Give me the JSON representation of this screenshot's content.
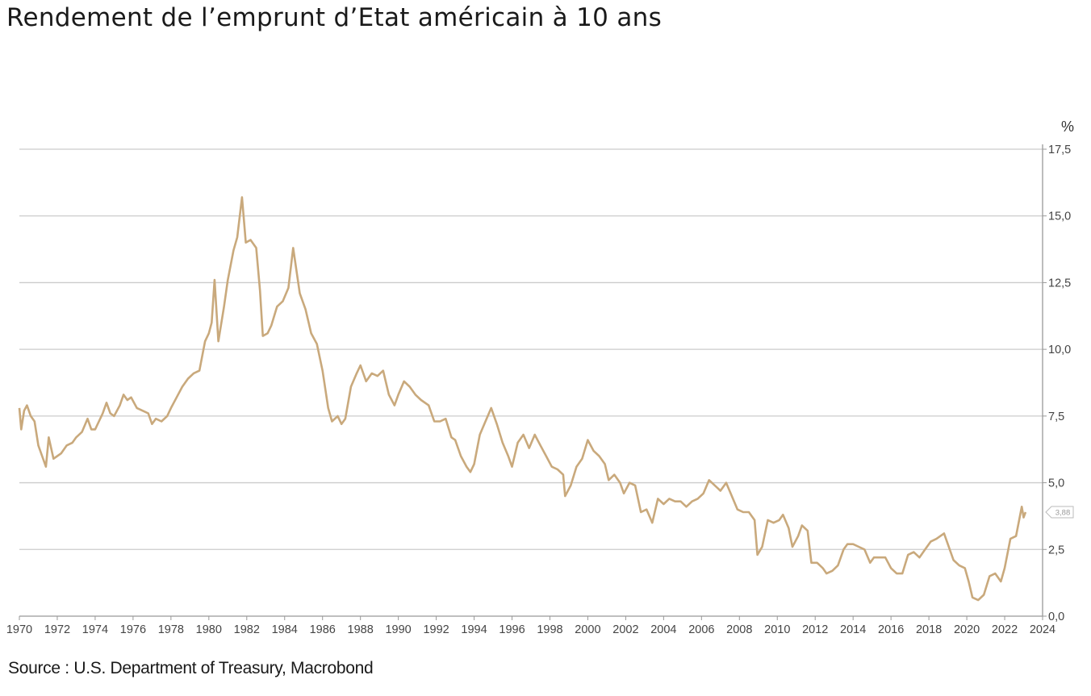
{
  "title": "Rendement de l’emprunt d’Etat américain à 10 ans",
  "source": "Source : U.S. Department of Treasury, Macrobond",
  "colors": {
    "line": "#c9a97c",
    "grid": "#cccccc",
    "axis": "#999999",
    "text": "#444444"
  },
  "chart_data": {
    "type": "line",
    "title": "Rendement de l’emprunt d’Etat américain à 10 ans",
    "xlabel": "",
    "ylabel": "%",
    "xlim": [
      1970,
      2024
    ],
    "ylim": [
      0,
      17.5
    ],
    "grid": true,
    "y_axis_side": "right",
    "x_ticks": [
      1970,
      1972,
      1974,
      1976,
      1978,
      1980,
      1982,
      1984,
      1986,
      1988,
      1990,
      1992,
      1994,
      1996,
      1998,
      2000,
      2002,
      2004,
      2006,
      2008,
      2010,
      2012,
      2014,
      2016,
      2018,
      2020,
      2022,
      2024
    ],
    "y_ticks": [
      0,
      2.5,
      5,
      7.5,
      10,
      12.5,
      15,
      17.5
    ],
    "y_tick_labels": [
      "0,0",
      "2,5",
      "5,0",
      "7,5",
      "10,0",
      "12,5",
      "15,0",
      "17,5"
    ],
    "last_value_label": "3,88",
    "series": [
      {
        "x": [
          1970.0,
          1970.1,
          1970.25,
          1970.4,
          1970.6,
          1970.8,
          1971.0,
          1971.2,
          1971.4,
          1971.55,
          1971.8,
          1972.0,
          1972.2,
          1972.5,
          1972.8,
          1973.0,
          1973.3,
          1973.6,
          1973.8,
          1974.0,
          1974.2,
          1974.4,
          1974.6,
          1974.8,
          1975.0,
          1975.3,
          1975.5,
          1975.7,
          1975.9,
          1976.2,
          1976.5,
          1976.8,
          1977.0,
          1977.2,
          1977.5,
          1977.8,
          1978.0,
          1978.3,
          1978.6,
          1978.9,
          1979.2,
          1979.5,
          1979.8,
          1980.0,
          1980.15,
          1980.3,
          1980.5,
          1980.8,
          1981.0,
          1981.3,
          1981.5,
          1981.75,
          1981.95,
          1982.2,
          1982.5,
          1982.7,
          1982.85,
          1983.1,
          1983.3,
          1983.6,
          1983.9,
          1984.2,
          1984.45,
          1984.8,
          1985.1,
          1985.4,
          1985.7,
          1986.0,
          1986.3,
          1986.5,
          1986.8,
          1987.0,
          1987.2,
          1987.5,
          1987.8,
          1988.0,
          1988.3,
          1988.6,
          1988.9,
          1989.2,
          1989.5,
          1989.8,
          1990.0,
          1990.3,
          1990.6,
          1990.9,
          1991.2,
          1991.6,
          1991.9,
          1992.2,
          1992.5,
          1992.8,
          1993.0,
          1993.3,
          1993.6,
          1993.8,
          1994.0,
          1994.3,
          1994.6,
          1994.9,
          1995.2,
          1995.5,
          1995.8,
          1996.0,
          1996.3,
          1996.6,
          1996.9,
          1997.2,
          1997.5,
          1997.8,
          1998.1,
          1998.4,
          1998.7,
          1998.8,
          1999.1,
          1999.4,
          1999.7,
          2000.0,
          2000.3,
          2000.6,
          2000.9,
          2001.1,
          2001.4,
          2001.7,
          2001.9,
          2002.2,
          2002.5,
          2002.8,
          2003.1,
          2003.4,
          2003.7,
          2004.0,
          2004.3,
          2004.6,
          2004.9,
          2005.2,
          2005.5,
          2005.8,
          2006.1,
          2006.4,
          2006.7,
          2007.0,
          2007.3,
          2007.6,
          2007.9,
          2008.2,
          2008.5,
          2008.8,
          2008.95,
          2009.2,
          2009.5,
          2009.8,
          2010.1,
          2010.3,
          2010.6,
          2010.8,
          2011.1,
          2011.3,
          2011.6,
          2011.8,
          2012.1,
          2012.4,
          2012.6,
          2012.9,
          2013.2,
          2013.5,
          2013.7,
          2014.0,
          2014.3,
          2014.6,
          2014.9,
          2015.1,
          2015.4,
          2015.7,
          2016.0,
          2016.3,
          2016.6,
          2016.9,
          2017.2,
          2017.5,
          2017.8,
          2018.1,
          2018.4,
          2018.8,
          2019.0,
          2019.3,
          2019.6,
          2019.9,
          2020.1,
          2020.3,
          2020.6,
          2020.9,
          2021.2,
          2021.5,
          2021.8,
          2022.0,
          2022.3,
          2022.6,
          2022.9,
          2023.0,
          2023.1
        ],
        "values": [
          7.8,
          7.0,
          7.7,
          7.9,
          7.5,
          7.3,
          6.4,
          6.0,
          5.6,
          6.7,
          5.9,
          6.0,
          6.1,
          6.4,
          6.5,
          6.7,
          6.9,
          7.4,
          7.0,
          7.0,
          7.3,
          7.6,
          8.0,
          7.6,
          7.5,
          7.9,
          8.3,
          8.1,
          8.2,
          7.8,
          7.7,
          7.6,
          7.2,
          7.4,
          7.3,
          7.5,
          7.8,
          8.2,
          8.6,
          8.9,
          9.1,
          9.2,
          10.3,
          10.6,
          11.0,
          12.6,
          10.3,
          11.6,
          12.6,
          13.7,
          14.2,
          15.7,
          14.0,
          14.1,
          13.8,
          12.2,
          10.5,
          10.6,
          10.9,
          11.6,
          11.8,
          12.3,
          13.8,
          12.1,
          11.5,
          10.6,
          10.2,
          9.2,
          7.8,
          7.3,
          7.5,
          7.2,
          7.4,
          8.6,
          9.1,
          9.4,
          8.8,
          9.1,
          9.0,
          9.2,
          8.3,
          7.9,
          8.3,
          8.8,
          8.6,
          8.3,
          8.1,
          7.9,
          7.3,
          7.3,
          7.4,
          6.7,
          6.6,
          6.0,
          5.6,
          5.4,
          5.7,
          6.8,
          7.3,
          7.8,
          7.2,
          6.5,
          6.0,
          5.6,
          6.5,
          6.8,
          6.3,
          6.8,
          6.4,
          6.0,
          5.6,
          5.5,
          5.3,
          4.5,
          4.9,
          5.6,
          5.9,
          6.6,
          6.2,
          6.0,
          5.7,
          5.1,
          5.3,
          5.0,
          4.6,
          5.0,
          4.9,
          3.9,
          4.0,
          3.5,
          4.4,
          4.2,
          4.4,
          4.3,
          4.3,
          4.1,
          4.3,
          4.4,
          4.6,
          5.1,
          4.9,
          4.7,
          5.0,
          4.5,
          4.0,
          3.9,
          3.9,
          3.6,
          2.3,
          2.6,
          3.6,
          3.5,
          3.6,
          3.8,
          3.3,
          2.6,
          3.0,
          3.4,
          3.2,
          2.0,
          2.0,
          1.8,
          1.6,
          1.7,
          1.9,
          2.5,
          2.7,
          2.7,
          2.6,
          2.5,
          2.0,
          2.2,
          2.2,
          2.2,
          1.8,
          1.6,
          1.6,
          2.3,
          2.4,
          2.2,
          2.5,
          2.8,
          2.9,
          3.1,
          2.7,
          2.1,
          1.9,
          1.8,
          1.3,
          0.7,
          0.6,
          0.8,
          1.5,
          1.6,
          1.3,
          1.8,
          2.9,
          3.0,
          4.1,
          3.7,
          3.9
        ]
      }
    ]
  }
}
